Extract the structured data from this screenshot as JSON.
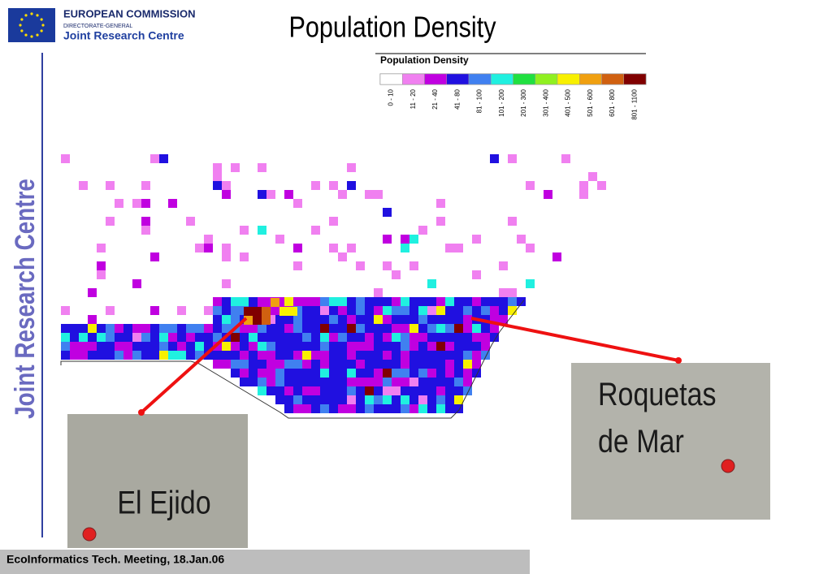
{
  "header": {
    "org": "EUROPEAN COMMISSION",
    "directorate": "DIRECTORATE-GENERAL",
    "centre": "Joint Research Centre"
  },
  "title": "Population Density",
  "sidebar": "Joint Research Centre",
  "legend": {
    "title": "Population Density",
    "classes": [
      {
        "label": "0 - 10",
        "color": "#ffffff"
      },
      {
        "label": "11 - 20",
        "color": "#f080f0"
      },
      {
        "label": "21 - 40",
        "color": "#c000e0"
      },
      {
        "label": "41 - 80",
        "color": "#2010e0"
      },
      {
        "label": "81 - 100",
        "color": "#4080f0"
      },
      {
        "label": "101 - 200",
        "color": "#20f0e0"
      },
      {
        "label": "201 - 300",
        "color": "#20e040"
      },
      {
        "label": "301 - 400",
        "color": "#90f020"
      },
      {
        "label": "401 - 500",
        "color": "#f8f000"
      },
      {
        "label": "501 - 600",
        "color": "#f0a010"
      },
      {
        "label": "601 - 800",
        "color": "#d06010"
      },
      {
        "label": "801 - 1100",
        "color": "#800000"
      }
    ]
  },
  "insets": [
    {
      "label": "El Ejido"
    },
    {
      "label": "Roquetas de Mar"
    }
  ],
  "footer": "EcoInformatics Tech. Meeting, 18.Jan.06"
}
